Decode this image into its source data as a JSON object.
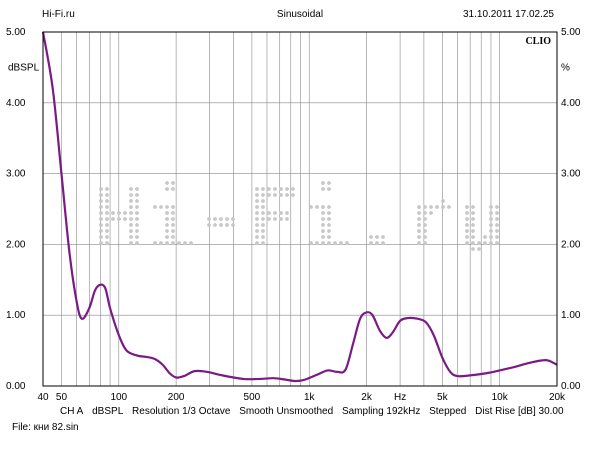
{
  "header": {
    "left": "Hi-Fi.ru",
    "center": "Sinusoidal",
    "right": "31.10.2011 17.02.25"
  },
  "chart_data": {
    "type": "line",
    "x_scale": "log",
    "xlim": [
      40,
      20000
    ],
    "ylim": [
      0,
      5
    ],
    "grid": true,
    "ylabel_left": "dBSPL",
    "ylabel_right": "%",
    "brand": "CLIO",
    "watermark": "Hi-Fi.ru",
    "y_ticks": [
      "0.00",
      "1.00",
      "2.00",
      "3.00",
      "4.00",
      "5.00"
    ],
    "x_ticks": [
      {
        "v": 40,
        "label": "40"
      },
      {
        "v": 50,
        "label": "50"
      },
      {
        "v": 100,
        "label": "100"
      },
      {
        "v": 200,
        "label": "200"
      },
      {
        "v": 500,
        "label": "500"
      },
      {
        "v": 1000,
        "label": "1k"
      },
      {
        "v": 2000,
        "label": "2k"
      },
      {
        "v": 3000,
        "label": "Hz"
      },
      {
        "v": 5000,
        "label": "5k"
      },
      {
        "v": 10000,
        "label": "10k"
      },
      {
        "v": 20000,
        "label": "20k"
      }
    ],
    "series": [
      {
        "color": "#7b1a86",
        "points": [
          [
            40,
            5.0
          ],
          [
            45,
            4.2
          ],
          [
            50,
            3.0
          ],
          [
            55,
            1.9
          ],
          [
            60,
            1.2
          ],
          [
            64,
            0.95
          ],
          [
            70,
            1.1
          ],
          [
            75,
            1.35
          ],
          [
            80,
            1.43
          ],
          [
            85,
            1.38
          ],
          [
            90,
            1.1
          ],
          [
            100,
            0.72
          ],
          [
            110,
            0.5
          ],
          [
            125,
            0.43
          ],
          [
            140,
            0.41
          ],
          [
            155,
            0.38
          ],
          [
            170,
            0.3
          ],
          [
            185,
            0.18
          ],
          [
            200,
            0.12
          ],
          [
            220,
            0.14
          ],
          [
            250,
            0.21
          ],
          [
            290,
            0.2
          ],
          [
            350,
            0.15
          ],
          [
            450,
            0.1
          ],
          [
            550,
            0.1
          ],
          [
            650,
            0.11
          ],
          [
            750,
            0.09
          ],
          [
            850,
            0.07
          ],
          [
            950,
            0.09
          ],
          [
            1100,
            0.16
          ],
          [
            1250,
            0.22
          ],
          [
            1400,
            0.2
          ],
          [
            1550,
            0.23
          ],
          [
            1700,
            0.6
          ],
          [
            1850,
            0.95
          ],
          [
            2000,
            1.04
          ],
          [
            2150,
            1.0
          ],
          [
            2350,
            0.78
          ],
          [
            2550,
            0.68
          ],
          [
            2750,
            0.76
          ],
          [
            3000,
            0.92
          ],
          [
            3300,
            0.96
          ],
          [
            3700,
            0.95
          ],
          [
            4100,
            0.9
          ],
          [
            4500,
            0.72
          ],
          [
            5000,
            0.4
          ],
          [
            5500,
            0.2
          ],
          [
            6000,
            0.14
          ],
          [
            7000,
            0.15
          ],
          [
            8500,
            0.18
          ],
          [
            10000,
            0.22
          ],
          [
            12000,
            0.27
          ],
          [
            14000,
            0.32
          ],
          [
            16500,
            0.36
          ],
          [
            18000,
            0.36
          ],
          [
            20000,
            0.3
          ]
        ]
      }
    ]
  },
  "footer": {
    "channel": "CH A",
    "unit": "dBSPL",
    "resolution": "Resolution 1/3 Octave",
    "smooth": "Smooth Unsmoothed",
    "sampling": "Sampling 192kHz",
    "mode": "Stepped",
    "dist_rise": "Dist Rise [dB] 30.00",
    "file": "File: кни 82.sin"
  }
}
